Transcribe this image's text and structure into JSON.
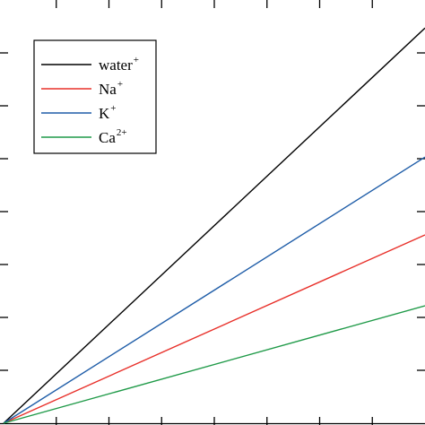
{
  "chart_data": {
    "type": "line",
    "title": "",
    "xlabel": "",
    "ylabel": "",
    "xlim": [
      0,
      8
    ],
    "ylim": [
      0,
      8
    ],
    "grid": false,
    "legend_position": "top-left",
    "series": [
      {
        "name": "water",
        "name_sup": "+",
        "color": "#000000",
        "x": [
          0,
          8
        ],
        "y": [
          0,
          7.47
        ]
      },
      {
        "name": "Na",
        "name_sup": "+",
        "color": "#e8302a",
        "x": [
          0,
          8
        ],
        "y": [
          0,
          3.56
        ]
      },
      {
        "name": "K",
        "name_sup": "+",
        "color": "#1f5da8",
        "x": [
          0,
          8
        ],
        "y": [
          0,
          5.03
        ]
      },
      {
        "name": "Ca",
        "name_sup": "2+",
        "color": "#1f9a48",
        "x": [
          0,
          8
        ],
        "y": [
          0,
          2.22
        ]
      }
    ]
  }
}
